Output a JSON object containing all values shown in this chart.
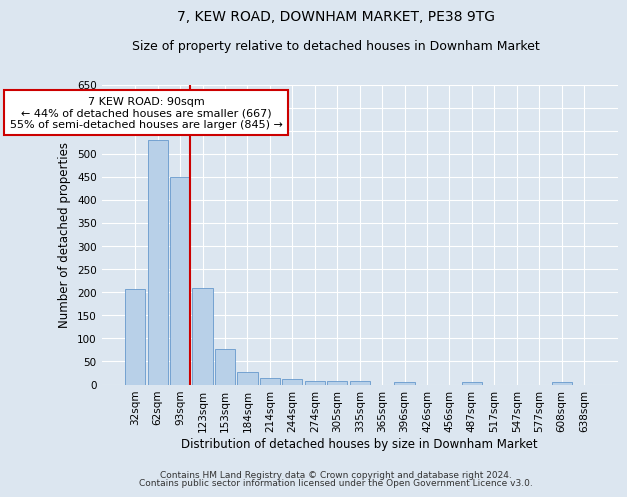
{
  "title": "7, KEW ROAD, DOWNHAM MARKET, PE38 9TG",
  "subtitle": "Size of property relative to detached houses in Downham Market",
  "xlabel": "Distribution of detached houses by size in Downham Market",
  "ylabel": "Number of detached properties",
  "categories": [
    "32sqm",
    "62sqm",
    "93sqm",
    "123sqm",
    "153sqm",
    "184sqm",
    "214sqm",
    "244sqm",
    "274sqm",
    "305sqm",
    "335sqm",
    "365sqm",
    "396sqm",
    "426sqm",
    "456sqm",
    "487sqm",
    "517sqm",
    "547sqm",
    "577sqm",
    "608sqm",
    "638sqm"
  ],
  "values": [
    208,
    530,
    450,
    210,
    78,
    27,
    15,
    12,
    8,
    8,
    8,
    0,
    6,
    0,
    0,
    6,
    0,
    0,
    0,
    6,
    0
  ],
  "bar_color": "#b8d0e8",
  "bar_edge_color": "#6699cc",
  "red_line_index": 2,
  "annotation_line1": "7 KEW ROAD: 90sqm",
  "annotation_line2": "← 44% of detached houses are smaller (667)",
  "annotation_line3": "55% of semi-detached houses are larger (845) →",
  "annotation_box_color": "#ffffff",
  "annotation_box_edge_color": "#cc0000",
  "red_line_color": "#cc0000",
  "ylim": [
    0,
    650
  ],
  "yticks": [
    0,
    50,
    100,
    150,
    200,
    250,
    300,
    350,
    400,
    450,
    500,
    550,
    600,
    650
  ],
  "footer_line1": "Contains HM Land Registry data © Crown copyright and database right 2024.",
  "footer_line2": "Contains public sector information licensed under the Open Government Licence v3.0.",
  "background_color": "#dce6f0",
  "plot_background_color": "#dce6f0",
  "grid_color": "#ffffff",
  "title_fontsize": 10,
  "subtitle_fontsize": 9,
  "axis_label_fontsize": 8.5,
  "tick_fontsize": 7.5,
  "annotation_fontsize": 8,
  "footer_fontsize": 6.5
}
